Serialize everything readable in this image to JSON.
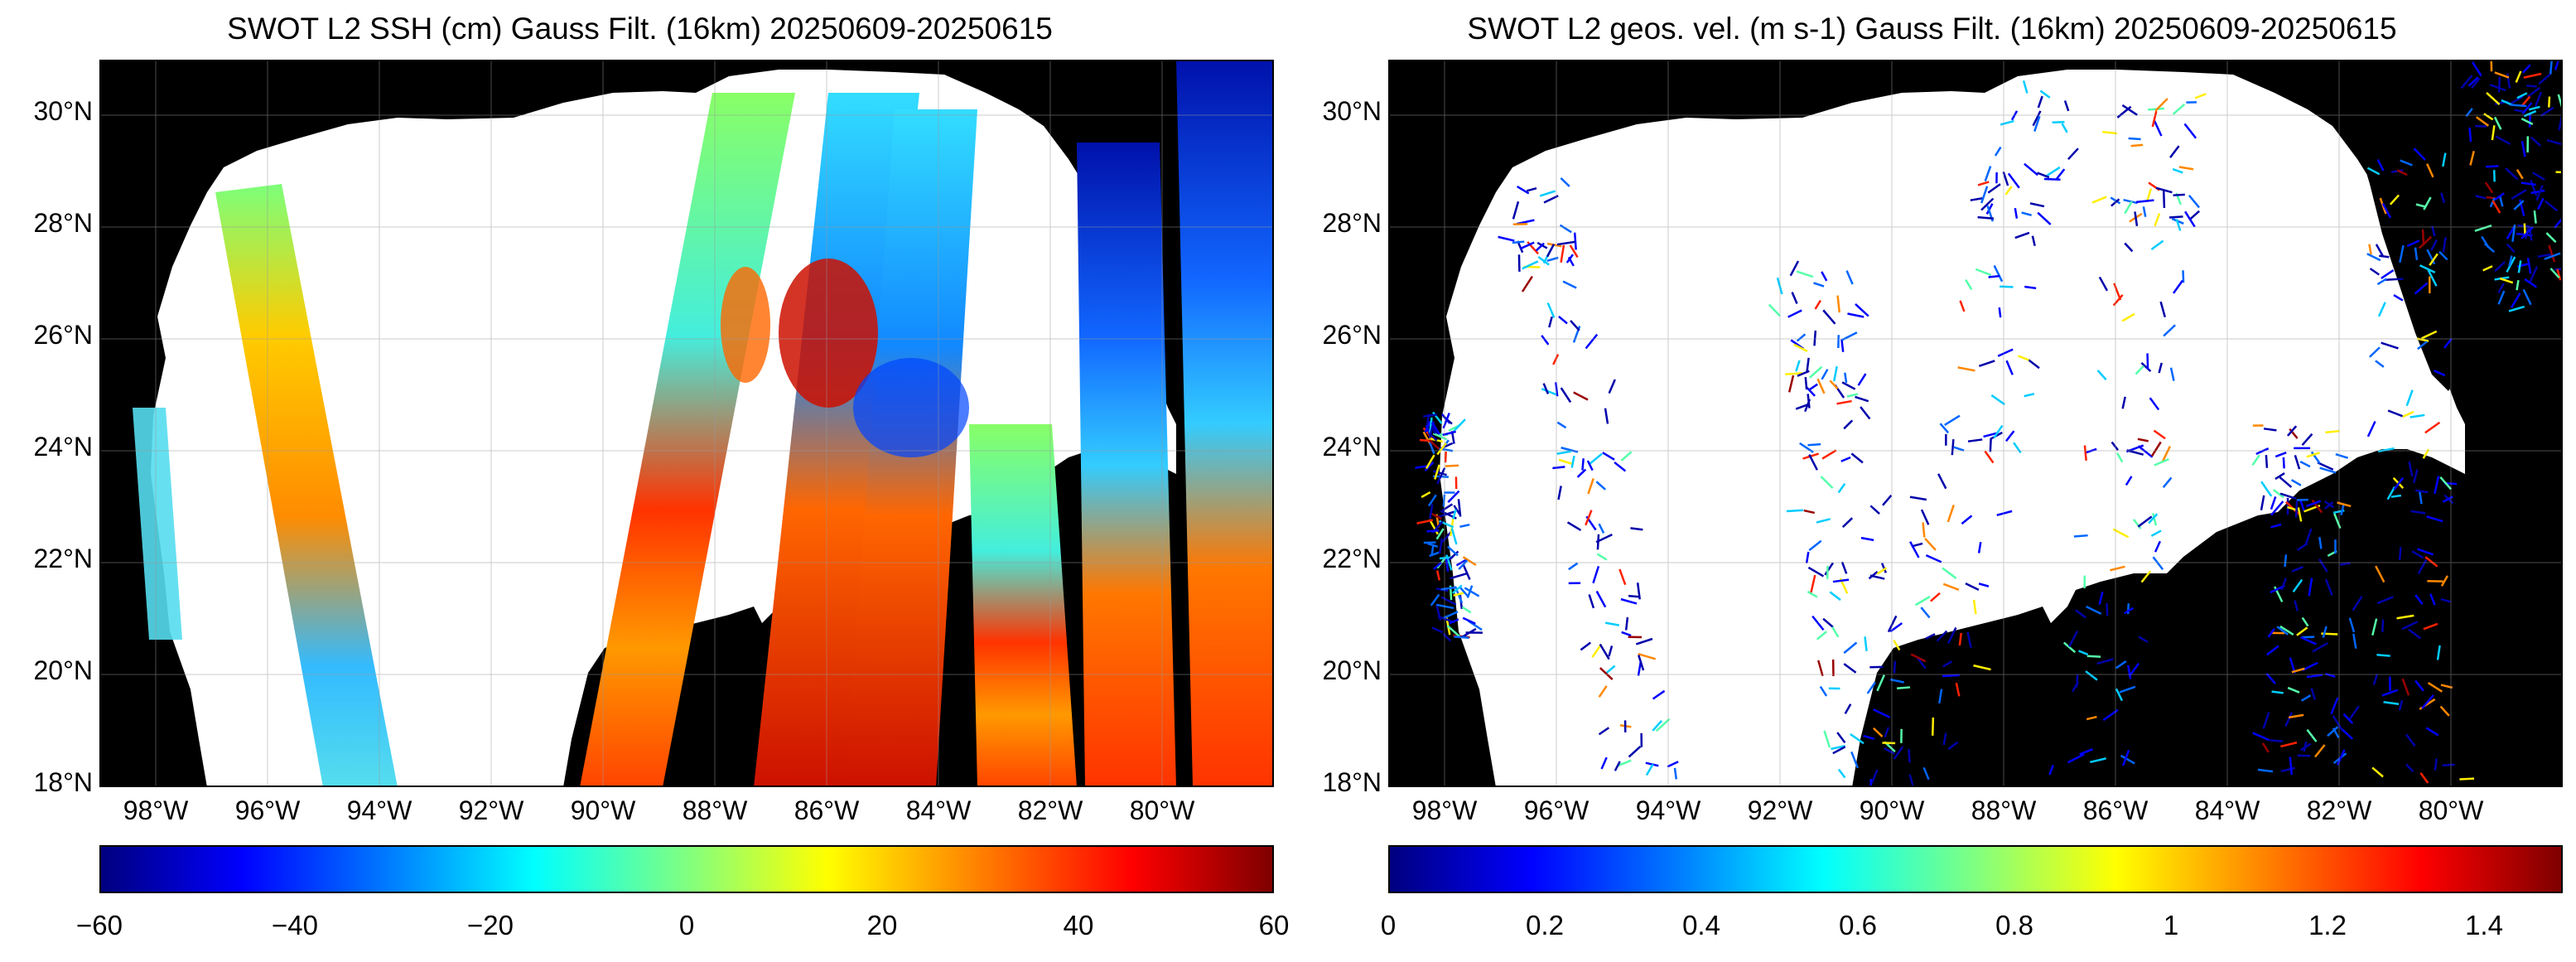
{
  "panels": [
    {
      "title": "SWOT L2 SSH (cm) Gauss Filt. (16km) 20250609-20250615",
      "colorbar_ticks": [
        "−60",
        "−40",
        "−20",
        "0",
        "20",
        "40",
        "60"
      ],
      "colorbar_range": [
        -60,
        60
      ],
      "colormap": "jet"
    },
    {
      "title": "SWOT L2 geos. vel. (m s-1) Gauss Filt. (16km) 20250609-20250615",
      "colorbar_ticks": [
        "0",
        "0.2",
        "0.4",
        "0.6",
        "0.8",
        "1",
        "1.2",
        "1.4"
      ],
      "colorbar_range": [
        0,
        1.5
      ],
      "colormap": "jet"
    }
  ],
  "lat_labels": [
    "30°N",
    "28°N",
    "26°N",
    "24°N",
    "22°N",
    "20°N",
    "18°N"
  ],
  "lon_labels": [
    "98°W",
    "96°W",
    "94°W",
    "92°W",
    "90°W",
    "88°W",
    "86°W",
    "84°W",
    "82°W",
    "80°W"
  ],
  "map_extent": {
    "lon": [
      -99,
      -78
    ],
    "lat": [
      18,
      31
    ]
  },
  "colors": {
    "land": "#000000",
    "ocean_nodata": "#ffffff",
    "grid": "#cccccc"
  }
}
